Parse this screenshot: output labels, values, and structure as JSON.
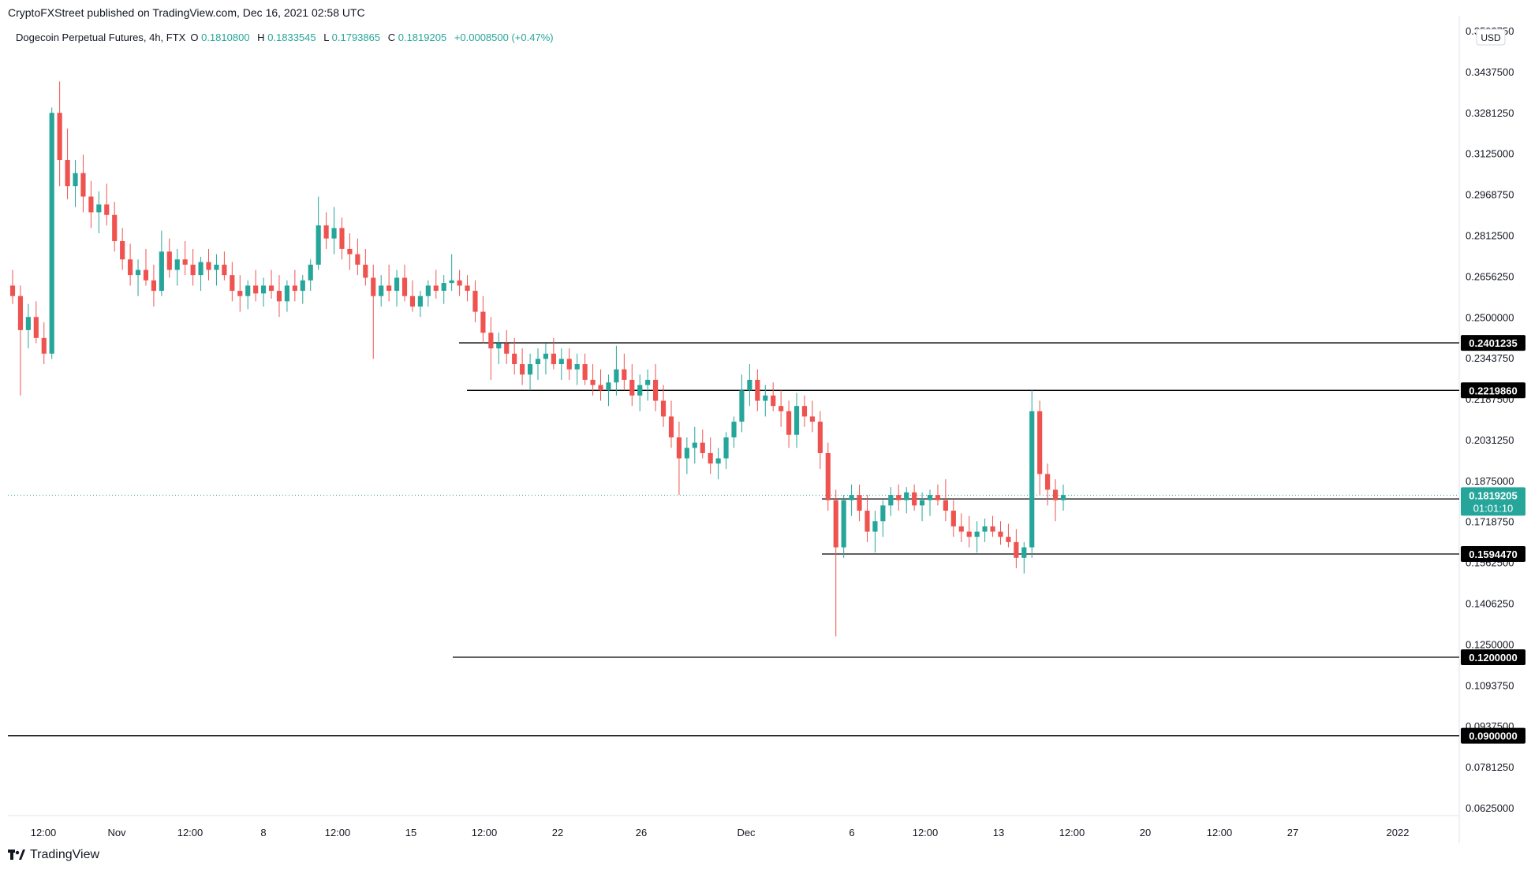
{
  "header": {
    "published_by": "CryptoFXStreet published on TradingView.com, Dec 16, 2021 02:58 UTC"
  },
  "legend": {
    "symbol": "Dogecoin Perpetual Futures, 4h, FTX",
    "open_label": "O",
    "open": "0.1810800",
    "high_label": "H",
    "high": "0.1833545",
    "low_label": "L",
    "low": "0.1793865",
    "close_label": "C",
    "close": "0.1819205",
    "change": "+0.0008500 (+0.47%)"
  },
  "currency": "USD",
  "footer": {
    "brand": "TradingView"
  },
  "colors": {
    "up": "#26a69a",
    "down": "#ef5350",
    "line": "#000000",
    "price_tag": "#26a69a",
    "axis_text": "#131722",
    "grid": "#e0e3eb"
  },
  "chart_data": {
    "type": "candlestick",
    "interval": "4h",
    "ylim": [
      0.0575,
      0.3625
    ],
    "y_scale": "linear",
    "y_ticks": [
      "0.3593750",
      "0.3437500",
      "0.3281250",
      "0.3125000",
      "0.2968750",
      "0.2812500",
      "0.2656250",
      "0.2500000",
      "0.2343750",
      "0.2187500",
      "0.2031250",
      "0.1875000",
      "0.1718750",
      "0.1562500",
      "0.1406250",
      "0.1250000",
      "0.1093750",
      "0.0937500",
      "0.0781250",
      "0.0625000"
    ],
    "x_ticks": [
      "12:00",
      "Nov",
      "12:00",
      "8",
      "12:00",
      "15",
      "12:00",
      "22",
      "26",
      "Dec",
      "6",
      "12:00",
      "13",
      "12:00",
      "20",
      "12:00",
      "27",
      "2022"
    ],
    "horizontal_levels": [
      {
        "value": 0.2401235,
        "label": "0.2401235"
      },
      {
        "value": 0.221986,
        "label": "0.2219860"
      },
      {
        "value": 0.18049,
        "label": "0.1804900"
      },
      {
        "value": 0.159447,
        "label": "0.1594470"
      },
      {
        "value": 0.12,
        "label": "0.1200000"
      },
      {
        "value": 0.09,
        "label": "0.0900000"
      }
    ],
    "last_price": {
      "value": 0.1819205,
      "label": "0.1819205",
      "countdown": "01:01:10"
    },
    "candles": [
      [
        0.262,
        0.268,
        0.255,
        0.258
      ],
      [
        0.258,
        0.262,
        0.22,
        0.245
      ],
      [
        0.245,
        0.255,
        0.238,
        0.25
      ],
      [
        0.25,
        0.256,
        0.24,
        0.242
      ],
      [
        0.242,
        0.248,
        0.232,
        0.236
      ],
      [
        0.236,
        0.33,
        0.234,
        0.328
      ],
      [
        0.328,
        0.34,
        0.3,
        0.31
      ],
      [
        0.31,
        0.322,
        0.295,
        0.3
      ],
      [
        0.3,
        0.31,
        0.292,
        0.305
      ],
      [
        0.305,
        0.312,
        0.29,
        0.296
      ],
      [
        0.296,
        0.302,
        0.284,
        0.29
      ],
      [
        0.29,
        0.298,
        0.282,
        0.293
      ],
      [
        0.293,
        0.301,
        0.285,
        0.289
      ],
      [
        0.289,
        0.294,
        0.275,
        0.279
      ],
      [
        0.279,
        0.284,
        0.268,
        0.272
      ],
      [
        0.272,
        0.278,
        0.262,
        0.266
      ],
      [
        0.266,
        0.272,
        0.258,
        0.268
      ],
      [
        0.268,
        0.276,
        0.262,
        0.264
      ],
      [
        0.264,
        0.27,
        0.254,
        0.26
      ],
      [
        0.26,
        0.283,
        0.258,
        0.275
      ],
      [
        0.275,
        0.28,
        0.265,
        0.268
      ],
      [
        0.268,
        0.276,
        0.262,
        0.272
      ],
      [
        0.272,
        0.279,
        0.266,
        0.27
      ],
      [
        0.27,
        0.276,
        0.262,
        0.266
      ],
      [
        0.266,
        0.273,
        0.26,
        0.271
      ],
      [
        0.271,
        0.276,
        0.264,
        0.268
      ],
      [
        0.268,
        0.274,
        0.262,
        0.27
      ],
      [
        0.27,
        0.275,
        0.264,
        0.266
      ],
      [
        0.266,
        0.271,
        0.256,
        0.26
      ],
      [
        0.26,
        0.266,
        0.252,
        0.258
      ],
      [
        0.258,
        0.264,
        0.253,
        0.262
      ],
      [
        0.262,
        0.268,
        0.256,
        0.259
      ],
      [
        0.259,
        0.265,
        0.254,
        0.262
      ],
      [
        0.262,
        0.268,
        0.257,
        0.26
      ],
      [
        0.26,
        0.266,
        0.25,
        0.256
      ],
      [
        0.256,
        0.264,
        0.252,
        0.262
      ],
      [
        0.262,
        0.268,
        0.256,
        0.26
      ],
      [
        0.26,
        0.266,
        0.255,
        0.264
      ],
      [
        0.264,
        0.272,
        0.26,
        0.27
      ],
      [
        0.27,
        0.296,
        0.268,
        0.285
      ],
      [
        0.285,
        0.29,
        0.276,
        0.28
      ],
      [
        0.28,
        0.292,
        0.274,
        0.284
      ],
      [
        0.284,
        0.288,
        0.272,
        0.276
      ],
      [
        0.276,
        0.282,
        0.268,
        0.274
      ],
      [
        0.274,
        0.28,
        0.266,
        0.27
      ],
      [
        0.27,
        0.276,
        0.262,
        0.265
      ],
      [
        0.265,
        0.27,
        0.234,
        0.258
      ],
      [
        0.258,
        0.266,
        0.254,
        0.262
      ],
      [
        0.262,
        0.27,
        0.256,
        0.26
      ],
      [
        0.26,
        0.268,
        0.254,
        0.265
      ],
      [
        0.265,
        0.27,
        0.256,
        0.258
      ],
      [
        0.258,
        0.264,
        0.252,
        0.254
      ],
      [
        0.254,
        0.26,
        0.25,
        0.258
      ],
      [
        0.258,
        0.264,
        0.254,
        0.262
      ],
      [
        0.262,
        0.268,
        0.257,
        0.26
      ],
      [
        0.26,
        0.266,
        0.255,
        0.263
      ],
      [
        0.263,
        0.274,
        0.26,
        0.264
      ],
      [
        0.264,
        0.268,
        0.258,
        0.262
      ],
      [
        0.262,
        0.266,
        0.256,
        0.26
      ],
      [
        0.26,
        0.264,
        0.248,
        0.252
      ],
      [
        0.252,
        0.258,
        0.24,
        0.244
      ],
      [
        0.244,
        0.25,
        0.226,
        0.238
      ],
      [
        0.238,
        0.244,
        0.232,
        0.24
      ],
      [
        0.24,
        0.245,
        0.232,
        0.236
      ],
      [
        0.236,
        0.242,
        0.228,
        0.232
      ],
      [
        0.232,
        0.238,
        0.224,
        0.228
      ],
      [
        0.228,
        0.236,
        0.222,
        0.232
      ],
      [
        0.232,
        0.238,
        0.226,
        0.234
      ],
      [
        0.234,
        0.24,
        0.228,
        0.236
      ],
      [
        0.236,
        0.242,
        0.23,
        0.232
      ],
      [
        0.232,
        0.238,
        0.226,
        0.234
      ],
      [
        0.234,
        0.238,
        0.226,
        0.23
      ],
      [
        0.23,
        0.236,
        0.224,
        0.232
      ],
      [
        0.232,
        0.236,
        0.224,
        0.226
      ],
      [
        0.226,
        0.232,
        0.22,
        0.224
      ],
      [
        0.224,
        0.23,
        0.218,
        0.222
      ],
      [
        0.222,
        0.228,
        0.216,
        0.225
      ],
      [
        0.225,
        0.239,
        0.22,
        0.23
      ],
      [
        0.23,
        0.236,
        0.222,
        0.226
      ],
      [
        0.226,
        0.232,
        0.216,
        0.22
      ],
      [
        0.22,
        0.228,
        0.214,
        0.224
      ],
      [
        0.224,
        0.23,
        0.218,
        0.226
      ],
      [
        0.226,
        0.232,
        0.214,
        0.218
      ],
      [
        0.218,
        0.224,
        0.208,
        0.212
      ],
      [
        0.212,
        0.218,
        0.2,
        0.204
      ],
      [
        0.204,
        0.21,
        0.182,
        0.196
      ],
      [
        0.196,
        0.204,
        0.19,
        0.2
      ],
      [
        0.2,
        0.208,
        0.194,
        0.202
      ],
      [
        0.202,
        0.207,
        0.196,
        0.198
      ],
      [
        0.198,
        0.204,
        0.19,
        0.194
      ],
      [
        0.194,
        0.2,
        0.188,
        0.196
      ],
      [
        0.196,
        0.206,
        0.192,
        0.204
      ],
      [
        0.204,
        0.212,
        0.2,
        0.21
      ],
      [
        0.21,
        0.228,
        0.206,
        0.222
      ],
      [
        0.222,
        0.232,
        0.216,
        0.226
      ],
      [
        0.226,
        0.23,
        0.214,
        0.218
      ],
      [
        0.218,
        0.224,
        0.212,
        0.22
      ],
      [
        0.22,
        0.225,
        0.214,
        0.216
      ],
      [
        0.216,
        0.222,
        0.208,
        0.214
      ],
      [
        0.214,
        0.218,
        0.2,
        0.205
      ],
      [
        0.205,
        0.221,
        0.2,
        0.216
      ],
      [
        0.216,
        0.22,
        0.208,
        0.212
      ],
      [
        0.212,
        0.218,
        0.206,
        0.21
      ],
      [
        0.21,
        0.214,
        0.192,
        0.198
      ],
      [
        0.198,
        0.202,
        0.176,
        0.18
      ],
      [
        0.18,
        0.184,
        0.128,
        0.162
      ],
      [
        0.162,
        0.182,
        0.158,
        0.18
      ],
      [
        0.18,
        0.186,
        0.174,
        0.182
      ],
      [
        0.182,
        0.186,
        0.172,
        0.176
      ],
      [
        0.176,
        0.182,
        0.164,
        0.168
      ],
      [
        0.168,
        0.176,
        0.16,
        0.172
      ],
      [
        0.172,
        0.18,
        0.166,
        0.178
      ],
      [
        0.178,
        0.185,
        0.174,
        0.182
      ],
      [
        0.182,
        0.186,
        0.176,
        0.18
      ],
      [
        0.18,
        0.185,
        0.175,
        0.183
      ],
      [
        0.183,
        0.186,
        0.176,
        0.178
      ],
      [
        0.178,
        0.183,
        0.172,
        0.18
      ],
      [
        0.18,
        0.184,
        0.174,
        0.182
      ],
      [
        0.182,
        0.186,
        0.178,
        0.18
      ],
      [
        0.18,
        0.188,
        0.172,
        0.176
      ],
      [
        0.176,
        0.18,
        0.166,
        0.17
      ],
      [
        0.17,
        0.175,
        0.164,
        0.168
      ],
      [
        0.168,
        0.174,
        0.162,
        0.166
      ],
      [
        0.166,
        0.172,
        0.16,
        0.168
      ],
      [
        0.168,
        0.173,
        0.164,
        0.17
      ],
      [
        0.17,
        0.174,
        0.166,
        0.168
      ],
      [
        0.168,
        0.172,
        0.163,
        0.166
      ],
      [
        0.166,
        0.171,
        0.162,
        0.164
      ],
      [
        0.164,
        0.169,
        0.154,
        0.158
      ],
      [
        0.158,
        0.164,
        0.152,
        0.162
      ],
      [
        0.162,
        0.222,
        0.158,
        0.214
      ],
      [
        0.214,
        0.218,
        0.182,
        0.19
      ],
      [
        0.19,
        0.194,
        0.178,
        0.184
      ],
      [
        0.184,
        0.188,
        0.172,
        0.18
      ],
      [
        0.18,
        0.186,
        0.176,
        0.182
      ]
    ]
  }
}
